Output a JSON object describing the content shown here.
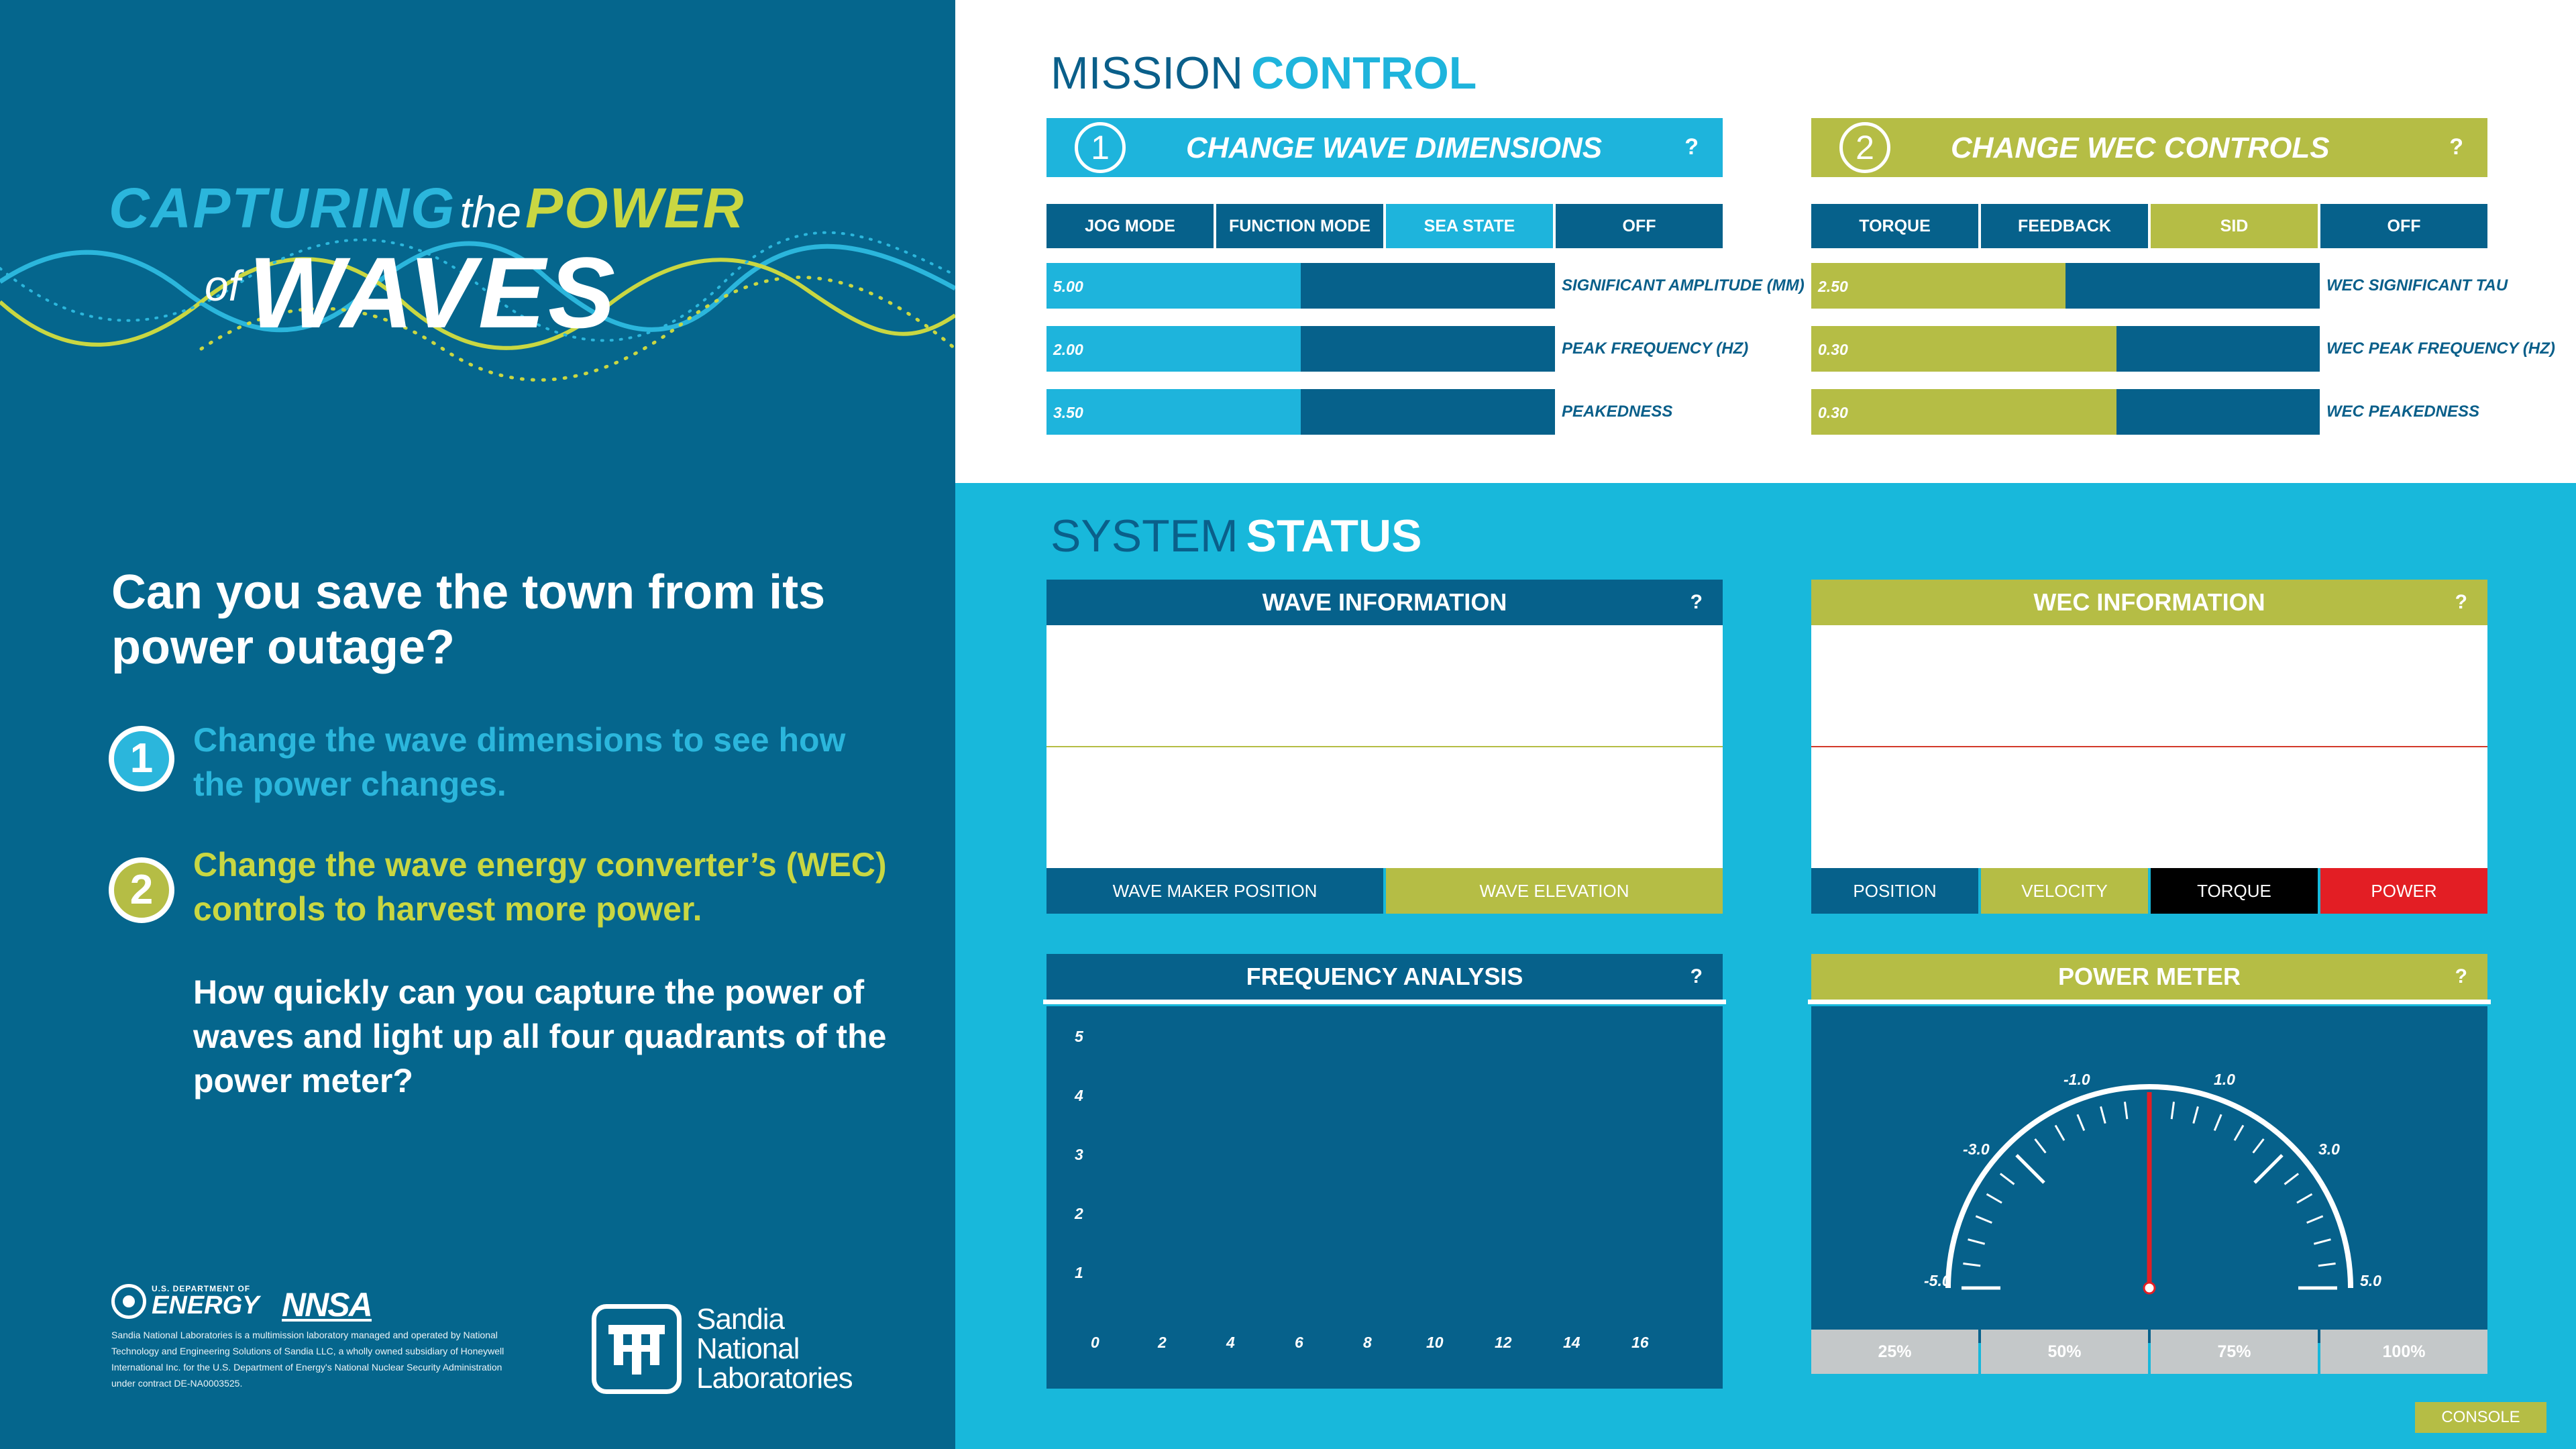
{
  "logo": {
    "capturing": "CAPTURING",
    "the": "the",
    "power": "POWER",
    "of": "of",
    "waves": "WAVES"
  },
  "intro": {
    "question": "Can you save the town from its power outage?",
    "steps": [
      {
        "num": "1",
        "text": "Change the wave dimensions to see how the power changes."
      },
      {
        "num": "2",
        "text": "Change the wave energy converter’s (WEC) controls to harvest more power."
      }
    ],
    "challenge": "How quickly can you capture the power of waves and light up all four quadrants of the power meter?"
  },
  "footer": {
    "doe_small": "U.S. DEPARTMENT OF",
    "doe_big": "ENERGY",
    "nnsa": "NNSA",
    "disclaimer": "Sandia National Laboratories is a multimission laboratory managed and operated by National Technology and Engineering Solutions of Sandia LLC, a wholly owned subsidiary of Honeywell International Inc. for the U.S. Department of Energy's National Nuclear Security Administration under contract DE-NA0003525.",
    "sandia": [
      "Sandia",
      "National",
      "Laboratories"
    ]
  },
  "mission": {
    "title_a": "MISSION",
    "title_b": "CONTROL",
    "wave_panel": {
      "num": "1",
      "title": "CHANGE WAVE DIMENSIONS",
      "help": "?",
      "modes": [
        "JOG MODE",
        "FUNCTION MODE",
        "SEA STATE",
        "OFF"
      ],
      "active_mode": "SEA STATE",
      "sliders": [
        {
          "value": "5.00",
          "label": "SIGNIFICANT AMPLITUDE (MM)",
          "fraction": 0.5
        },
        {
          "value": "2.00",
          "label": "PEAK FREQUENCY (HZ)",
          "fraction": 0.5
        },
        {
          "value": "3.50",
          "label": "PEAKEDNESS",
          "fraction": 0.5
        }
      ]
    },
    "wec_panel": {
      "num": "2",
      "title": "CHANGE WEC CONTROLS",
      "help": "?",
      "modes": [
        "TORQUE",
        "FEEDBACK",
        "SID",
        "OFF"
      ],
      "active_mode": "SID",
      "sliders": [
        {
          "value": "2.50",
          "label": "WEC SIGNIFICANT TAU",
          "fraction": 0.5
        },
        {
          "value": "0.30",
          "label": "WEC PEAK FREQUENCY (HZ)",
          "fraction": 0.6
        },
        {
          "value": "0.30",
          "label": "WEC PEAKEDNESS",
          "fraction": 0.6
        }
      ]
    }
  },
  "status": {
    "title_a": "SYSTEM",
    "title_b": "STATUS",
    "wave_info": {
      "title": "WAVE INFORMATION",
      "help": "?",
      "tabs": [
        "WAVE MAKER POSITION",
        "WAVE ELEVATION"
      ]
    },
    "wec_info": {
      "title": "WEC INFORMATION",
      "help": "?",
      "tabs": [
        "POSITION",
        "VELOCITY",
        "TORQUE",
        "POWER"
      ]
    },
    "frequency": {
      "title": "FREQUENCY ANALYSIS",
      "help": "?",
      "y_ticks": [
        "5",
        "4",
        "3",
        "2",
        "1"
      ],
      "x_ticks": [
        "0",
        "2",
        "4",
        "6",
        "8",
        "10",
        "12",
        "14",
        "16"
      ]
    },
    "power_meter": {
      "title": "POWER METER",
      "help": "?",
      "gauge_labels": [
        "-5.0",
        "-3.0",
        "-1.0",
        "1.0",
        "3.0",
        "5.0"
      ],
      "needle_value": 0,
      "quadrants": [
        "25%",
        "50%",
        "75%",
        "100%"
      ]
    }
  },
  "console": "CONSOLE",
  "colors": {
    "navy": "#05668d",
    "cyan": "#1eb4dc",
    "olive": "#b5bd45",
    "dark_blue": "#06618b",
    "black": "#000000",
    "red": "#e31e24",
    "gray": "#c4c8c9"
  }
}
